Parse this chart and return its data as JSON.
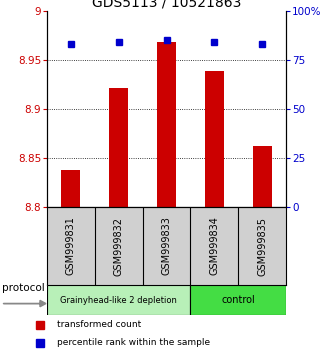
{
  "title": "GDS5113 / 10521863",
  "categories": [
    "GSM999831",
    "GSM999832",
    "GSM999833",
    "GSM999834",
    "GSM999835"
  ],
  "red_values": [
    8.838,
    8.921,
    8.968,
    8.939,
    8.862
  ],
  "blue_values": [
    83,
    84,
    85,
    84,
    83
  ],
  "ylim_left": [
    8.8,
    9.0
  ],
  "ylim_right": [
    0,
    100
  ],
  "yticks_left": [
    8.8,
    8.85,
    8.9,
    8.95,
    9.0
  ],
  "yticks_right": [
    0,
    25,
    50,
    75,
    100
  ],
  "ytick_labels_left": [
    "8.8",
    "8.85",
    "8.9",
    "8.95",
    "9"
  ],
  "ytick_labels_right": [
    "0",
    "25",
    "50",
    "75",
    "100%"
  ],
  "groups": [
    {
      "label": "Grainyhead-like 2 depletion",
      "color": "#b8f0b8",
      "start": 0,
      "end": 3
    },
    {
      "label": "control",
      "color": "#44dd44",
      "start": 3,
      "end": 5
    }
  ],
  "bar_color": "#cc0000",
  "dot_color": "#0000cc",
  "legend_red": "transformed count",
  "legend_blue": "percentile rank within the sample",
  "protocol_label": "protocol",
  "sample_bg_color": "#d0d0d0",
  "title_fontsize": 10,
  "tick_fontsize": 7.5,
  "label_fontsize": 7
}
